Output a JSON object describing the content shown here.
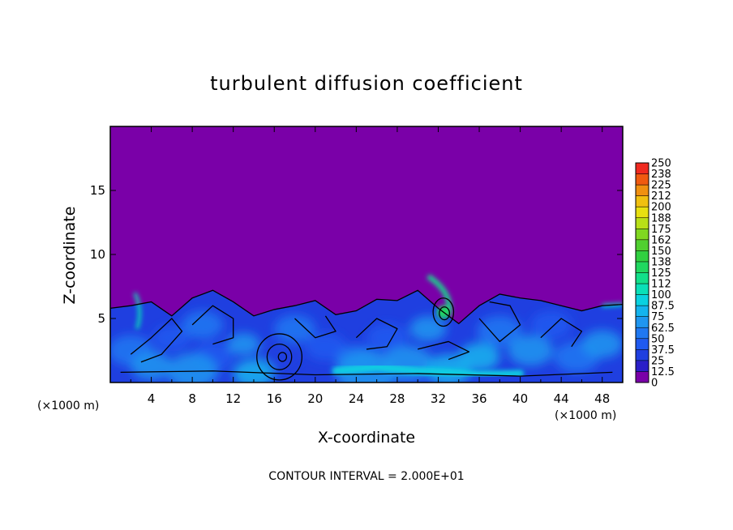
{
  "chart_data": {
    "type": "heatmap",
    "title": "turbulent diffusion coefficient",
    "xlabel": "X-coordinate",
    "ylabel": "Z-coordinate",
    "x_unit_left": "(×1000 m)",
    "x_unit_right": "(×1000 m)",
    "xlim": [
      0,
      50
    ],
    "ylim": [
      0,
      20
    ],
    "x_ticks": [
      4,
      8,
      12,
      16,
      20,
      24,
      28,
      32,
      36,
      40,
      44,
      48
    ],
    "x_tick_labels": [
      "4",
      "8",
      "12",
      "16",
      "20",
      "24",
      "28",
      "32",
      "36",
      "40",
      "44",
      "48"
    ],
    "y_ticks": [
      5,
      10,
      15
    ],
    "y_tick_labels": [
      "5",
      "10",
      "15"
    ],
    "colorbar": {
      "levels": [
        0,
        12.5,
        25,
        37.5,
        50,
        62.5,
        75,
        87.5,
        100,
        112,
        125,
        138,
        150,
        162,
        175,
        188,
        200,
        212,
        225,
        238,
        250
      ],
      "labels": [
        "0",
        "12.5",
        "25",
        "37.5",
        "50",
        "62.5",
        "75",
        "87.5",
        "100",
        "112",
        "125",
        "138",
        "150",
        "162",
        "175",
        "188",
        "200",
        "212",
        "225",
        "238",
        "250"
      ],
      "colors": [
        "#7a00a8",
        "#2a1fc8",
        "#1f3fe0",
        "#1f5af0",
        "#1f78f2",
        "#1f96f0",
        "#14b4ee",
        "#0ad2e0",
        "#0ae0b8",
        "#12e08a",
        "#20d860",
        "#30d040",
        "#50d030",
        "#80d820",
        "#b8e018",
        "#e8e010",
        "#f0c010",
        "#f09010",
        "#f05a10",
        "#f02a20",
        "#f06a78"
      ]
    },
    "background_color": "#7a00a8",
    "note": "CONTOUR INTERVAL = 2.000E+01",
    "boundary_layer_top": [
      [
        0,
        5.8
      ],
      [
        2,
        6.0
      ],
      [
        4,
        6.3
      ],
      [
        6,
        5.2
      ],
      [
        8,
        6.6
      ],
      [
        10,
        7.2
      ],
      [
        12,
        6.3
      ],
      [
        14,
        5.2
      ],
      [
        16,
        5.7
      ],
      [
        18,
        6.0
      ],
      [
        20,
        6.4
      ],
      [
        22,
        5.3
      ],
      [
        24,
        5.6
      ],
      [
        26,
        6.5
      ],
      [
        28,
        6.4
      ],
      [
        30,
        7.2
      ],
      [
        32,
        5.8
      ],
      [
        34,
        4.6
      ],
      [
        36,
        6.0
      ],
      [
        38,
        6.9
      ],
      [
        40,
        6.6
      ],
      [
        42,
        6.4
      ],
      [
        44,
        6.0
      ],
      [
        46,
        5.6
      ],
      [
        48,
        6.0
      ],
      [
        50,
        6.1
      ]
    ]
  }
}
